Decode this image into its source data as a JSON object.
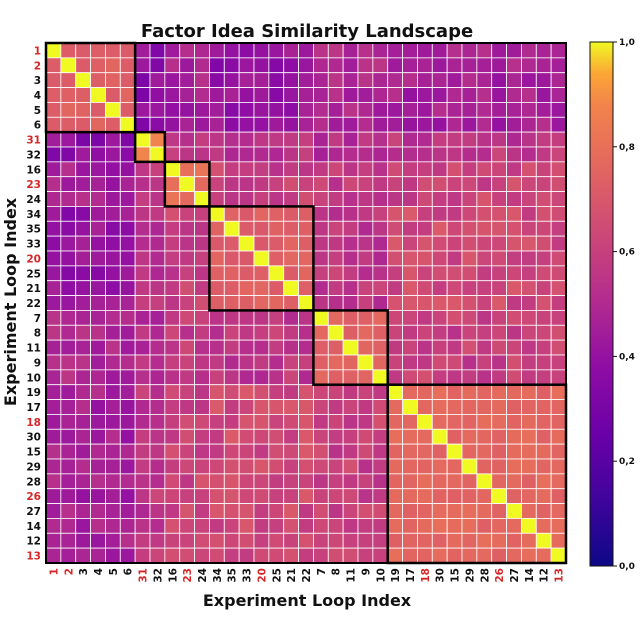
{
  "chart_data": {
    "type": "heatmap",
    "title": "Factor Idea Similarity Landscape",
    "xlabel": "Experiment Loop Index",
    "ylabel": "Experiment Loop Index",
    "labels": [
      "1",
      "2",
      "3",
      "4",
      "5",
      "6",
      "31",
      "32",
      "16",
      "23",
      "24",
      "34",
      "35",
      "33",
      "20",
      "25",
      "21",
      "22",
      "7",
      "8",
      "11",
      "9",
      "10",
      "19",
      "17",
      "18",
      "30",
      "15",
      "29",
      "28",
      "26",
      "27",
      "14",
      "12",
      "13"
    ],
    "highlighted_labels": [
      "1",
      "2",
      "31",
      "23",
      "20",
      "18",
      "26",
      "13"
    ],
    "highlight_color": "#d62728",
    "colormap": "plasma",
    "colorbar": {
      "ticks": [
        "0,0",
        "0,2",
        "0,4",
        "0,6",
        "0,8",
        "1,0"
      ],
      "range": [
        0,
        1
      ]
    },
    "clusters": [
      {
        "start": 0,
        "size": 6
      },
      {
        "start": 6,
        "size": 2
      },
      {
        "start": 8,
        "size": 3
      },
      {
        "start": 11,
        "size": 7
      },
      {
        "start": 18,
        "size": 5
      },
      {
        "start": 23,
        "size": 12
      }
    ],
    "diagonal": 1.0,
    "within_cluster_similarity": [
      0.74,
      0.86,
      0.8,
      0.73,
      0.75,
      0.76
    ],
    "between_cluster_similarity": [
      [
        0.74,
        0.38,
        0.46,
        0.4,
        0.5,
        0.46
      ],
      [
        0.38,
        0.86,
        0.55,
        0.55,
        0.52,
        0.56
      ],
      [
        0.46,
        0.55,
        0.8,
        0.6,
        0.58,
        0.62
      ],
      [
        0.4,
        0.55,
        0.6,
        0.73,
        0.56,
        0.64
      ],
      [
        0.5,
        0.52,
        0.58,
        0.56,
        0.75,
        0.6
      ],
      [
        0.46,
        0.56,
        0.62,
        0.64,
        0.6,
        0.76
      ]
    ]
  }
}
